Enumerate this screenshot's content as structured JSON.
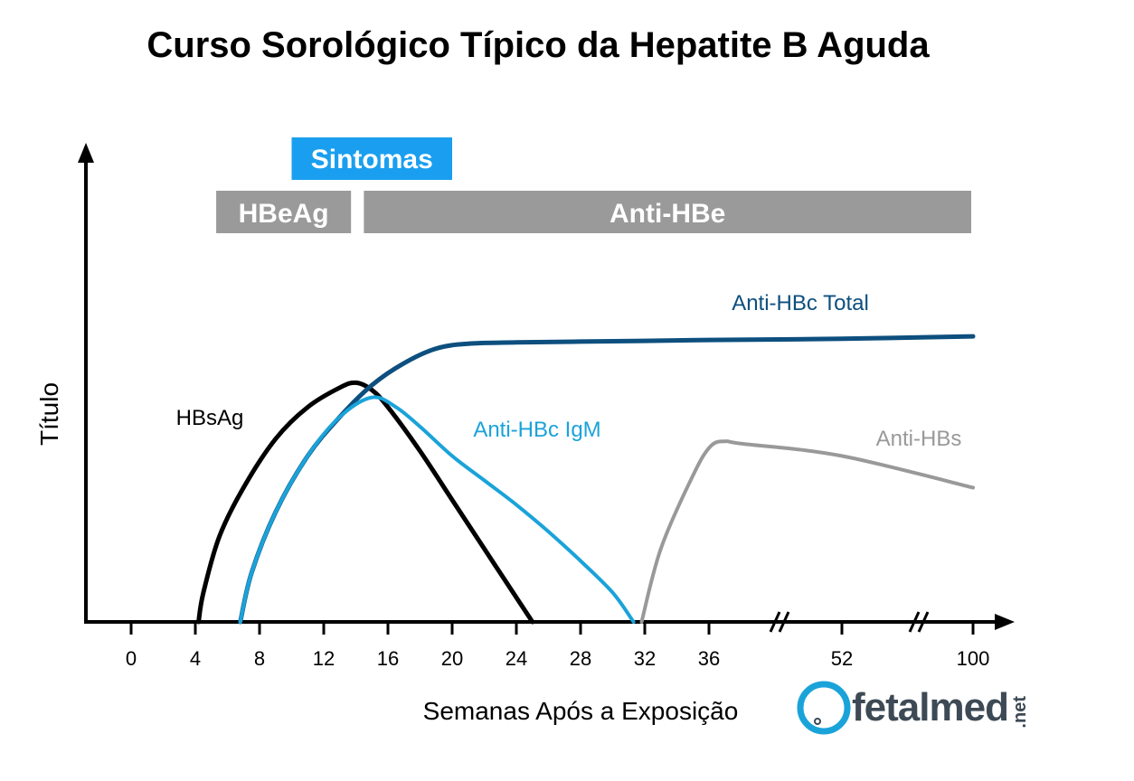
{
  "chart_data": {
    "type": "line",
    "title": "Curso Sorológico Típico da Hepatite B Aguda",
    "xlabel": "Semanas Após a Exposição",
    "ylabel": "Título",
    "x_ticks": [
      "0",
      "4",
      "8",
      "12",
      "16",
      "20",
      "24",
      "28",
      "32",
      "36",
      "52",
      "100"
    ],
    "axis_breaks": [
      "36-52",
      "52-100"
    ],
    "bands": [
      {
        "label": "Sintomas",
        "start": 10,
        "end": 20,
        "color": "#1a9ff0"
      },
      {
        "label": "HBeAg",
        "start": 5.3,
        "end": 13.7,
        "color": "#9a9a9a"
      },
      {
        "label": "Anti-HBe",
        "start": 14.5,
        "end": 100,
        "color": "#9a9a9a"
      }
    ],
    "series": [
      {
        "name": "HBsAg",
        "color": "#000000",
        "x": [
          4.2,
          4.5,
          5.5,
          7,
          9,
          11,
          13,
          14,
          15,
          16,
          18,
          20,
          22,
          24,
          25
        ],
        "y": [
          0,
          12,
          35,
          55,
          75,
          88,
          96,
          98,
          95,
          88,
          70,
          50,
          30,
          10,
          0
        ]
      },
      {
        "name": "Anti-HBc Total",
        "color": "#0d4f7e",
        "x": [
          6.8,
          7.5,
          9,
          11,
          13,
          15,
          17,
          19,
          21,
          24,
          30,
          36,
          52,
          100
        ],
        "y": [
          0,
          20,
          45,
          68,
          84,
          97,
          106,
          112,
          114,
          114.5,
          115,
          115.5,
          116,
          117
        ]
      },
      {
        "name": "Anti-HBc IgM",
        "color": "#1aa3d9",
        "x": [
          6.8,
          7.5,
          9,
          11,
          13,
          15,
          16.5,
          18,
          20,
          22,
          24,
          26,
          28,
          30,
          31.3
        ],
        "y": [
          0,
          20,
          45,
          68,
          84,
          92,
          88,
          80,
          68,
          58,
          48,
          37,
          25,
          12,
          0
        ]
      },
      {
        "name": "Anti-HBs",
        "color": "#999999",
        "x": [
          31.8,
          33,
          35,
          36.2,
          38,
          40,
          52,
          100
        ],
        "y": [
          0,
          30,
          60,
          72,
          74,
          73,
          68,
          55
        ]
      }
    ],
    "legend": "inline labels",
    "grid": false
  },
  "labels": {
    "sintomas": "Sintomas",
    "hbeag": "HBeAg",
    "anti_hbe": "Anti-HBe",
    "anti_hbc_total": "Anti-HBc Total",
    "hbsag": "HBsAg",
    "anti_hbc_igm": "Anti-HBc IgM",
    "anti_hbs": "Anti-HBs"
  },
  "logo": {
    "name": "fetalmed",
    "suffix": ".net",
    "colors": {
      "text": "#3d4a55",
      "accent": "#1aa3d9"
    }
  }
}
